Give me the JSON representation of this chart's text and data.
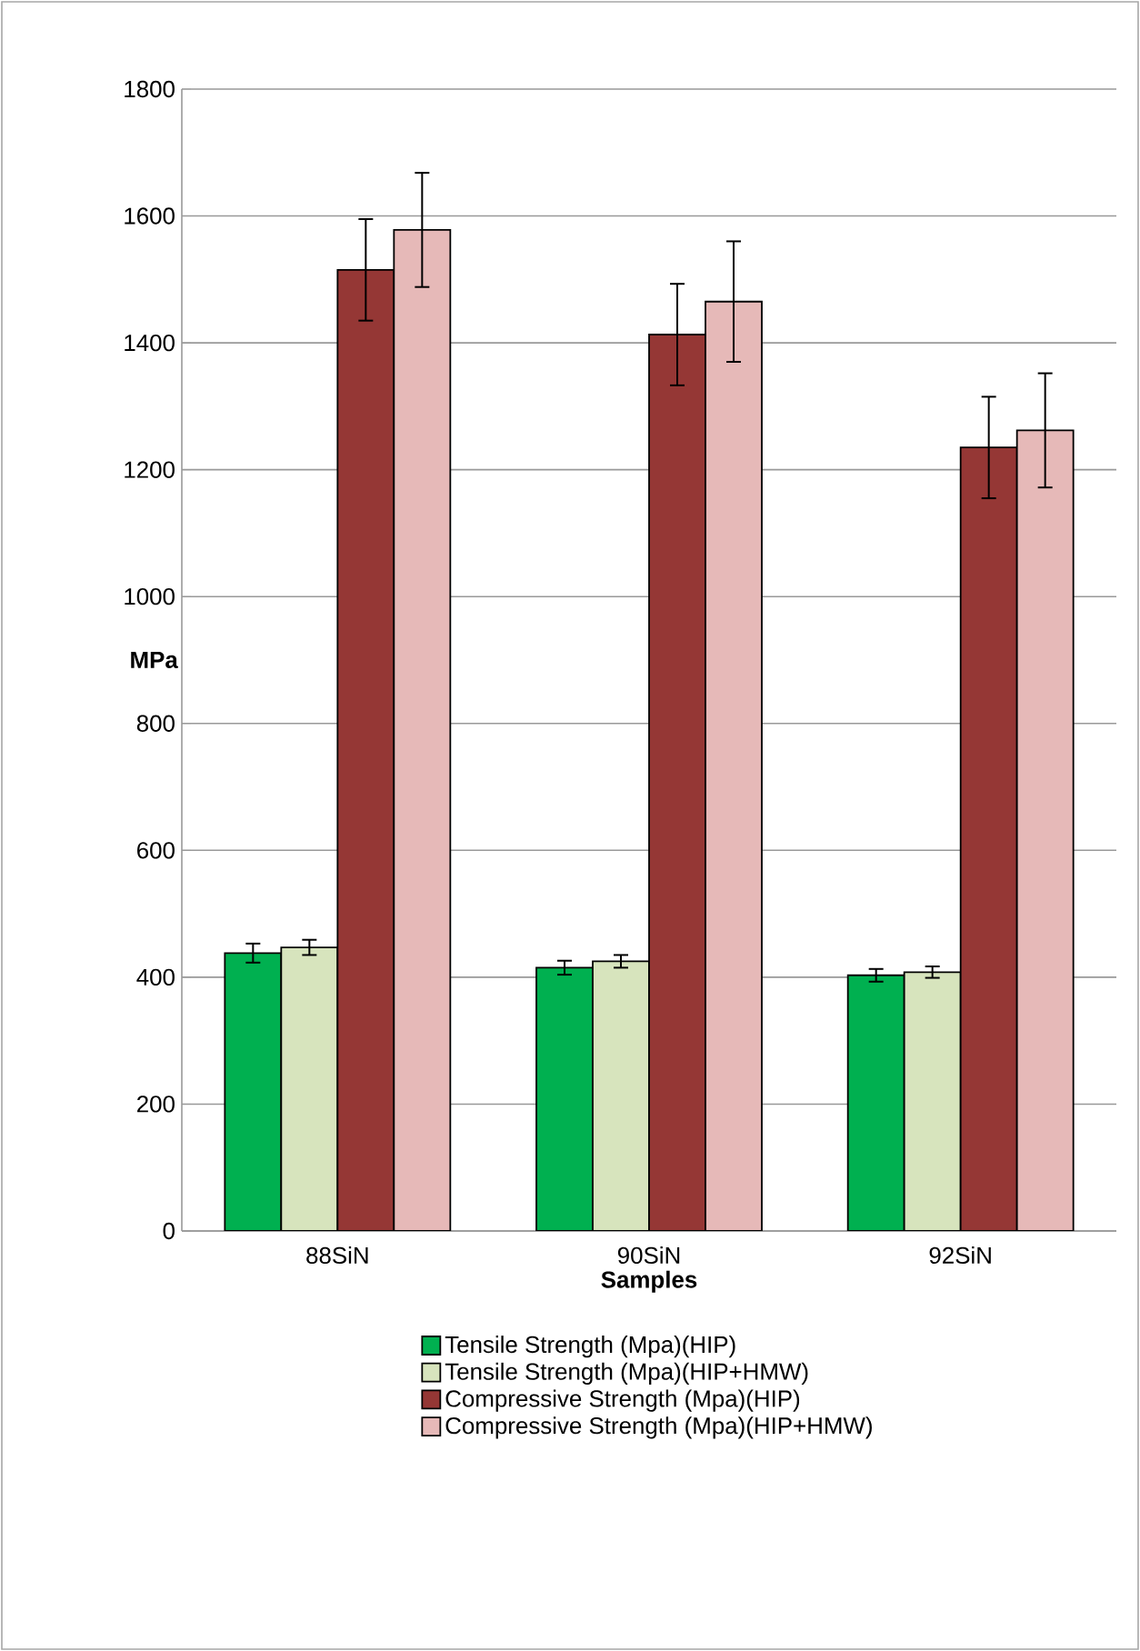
{
  "chart_data": {
    "type": "bar",
    "xlabel": "Samples",
    "ylabel": "MPa",
    "categories": [
      "88SiN",
      "90SiN",
      "92SiN"
    ],
    "series": [
      {
        "name": "Tensile Strength (Mpa)(HIP)",
        "color": "#00b050",
        "values": [
          438,
          415,
          403
        ],
        "errors": [
          15,
          11,
          10
        ]
      },
      {
        "name": "Tensile Strength (Mpa)(HIP+HMW)",
        "color": "#d7e4bd",
        "values": [
          447,
          425,
          408
        ],
        "errors": [
          12,
          10,
          9
        ]
      },
      {
        "name": "Compressive Strength (Mpa)(HIP)",
        "color": "#953735",
        "values": [
          1515,
          1413,
          1235
        ],
        "errors": [
          80,
          80,
          80
        ]
      },
      {
        "name": "Compressive Strength (Mpa)(HIP+HMW)",
        "color": "#e6b9b8",
        "values": [
          1578,
          1465,
          1262
        ],
        "errors": [
          90,
          95,
          90
        ]
      }
    ],
    "ylim": [
      0,
      1800
    ],
    "yticks": [
      0,
      200,
      400,
      600,
      800,
      1000,
      1200,
      1400,
      1600,
      1800
    ],
    "grid": "y",
    "legend": "bottom"
  }
}
